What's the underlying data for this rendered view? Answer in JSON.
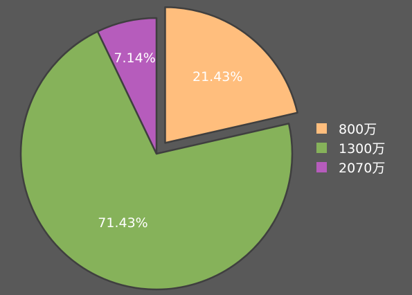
{
  "chart_data": {
    "type": "pie",
    "categories": [
      "800万",
      "1300万",
      "2070万"
    ],
    "values": [
      21.43,
      71.43,
      7.14
    ],
    "data_labels": [
      "21.43%",
      "71.43%",
      "7.14%"
    ],
    "colors": [
      "#ffbe7d",
      "#86b25a",
      "#b65cbc"
    ],
    "exploded": [
      true,
      false,
      false
    ],
    "legend_position": "right",
    "title": ""
  }
}
